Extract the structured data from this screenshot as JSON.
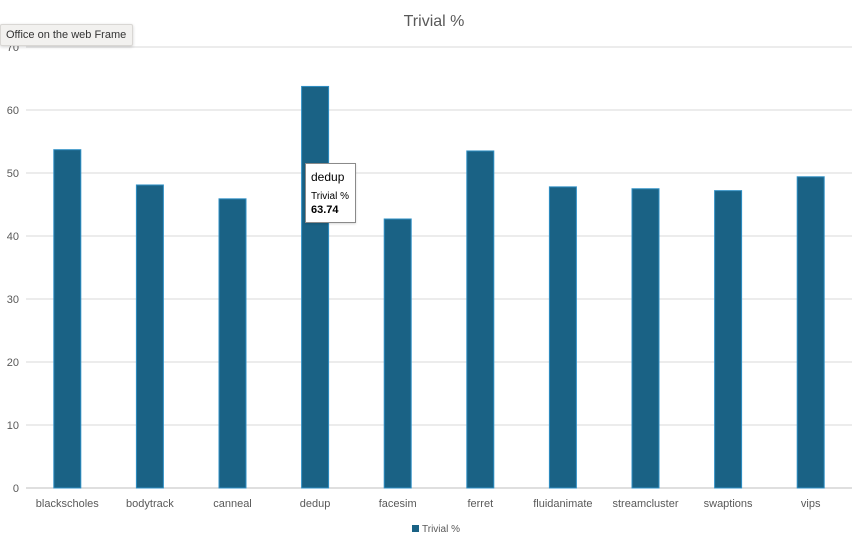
{
  "window": {
    "frame_label": "Office on the web Frame"
  },
  "chart_data": {
    "type": "bar",
    "title": "Trivial %",
    "categories": [
      "blackscholes",
      "bodytrack",
      "canneal",
      "dedup",
      "facesim",
      "ferret",
      "fluidanimate",
      "streamcluster",
      "swaptions",
      "vips"
    ],
    "series": [
      {
        "name": "Trivial %",
        "color": "#1a6285",
        "values": [
          53.7,
          48.1,
          45.9,
          63.74,
          42.7,
          53.5,
          47.8,
          47.5,
          47.2,
          49.4
        ]
      }
    ],
    "ylim": [
      0,
      70
    ],
    "yticks": [
      0,
      10,
      20,
      30,
      40,
      50,
      60,
      70
    ],
    "grid": true,
    "legend": "bottom"
  },
  "tooltip": {
    "category": "dedup",
    "series": "Trivial %",
    "value": "63.74"
  }
}
